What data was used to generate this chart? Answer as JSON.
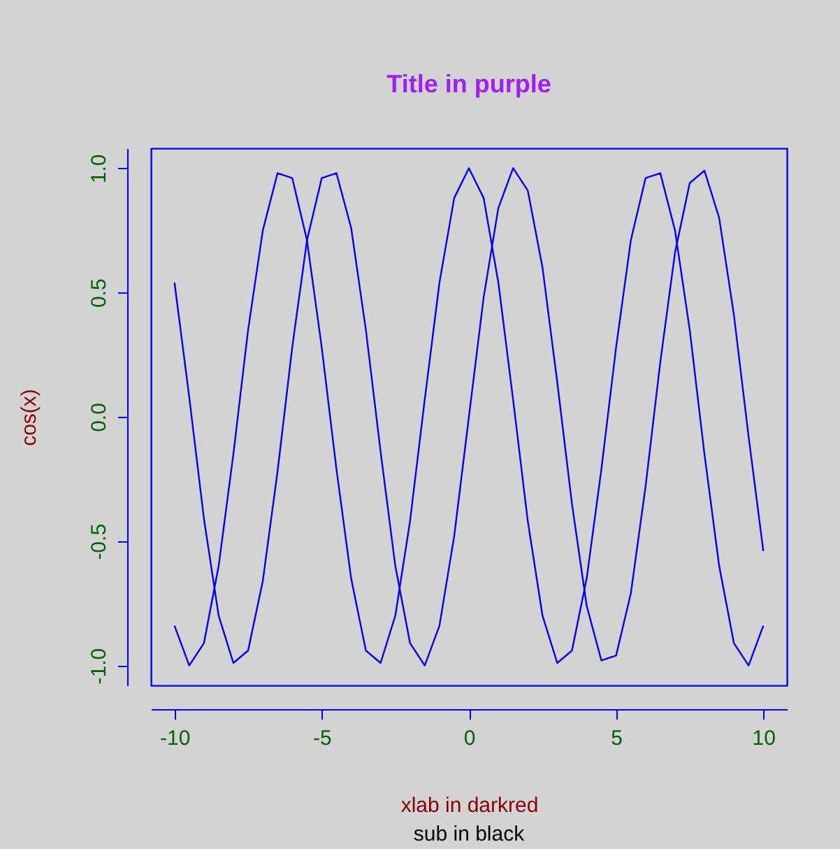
{
  "chart_data": {
    "type": "line",
    "title": "Title in purple",
    "subtitle": "sub in black",
    "xlabel": "xlab in darkred",
    "ylabel": "cos(x)",
    "x": [
      -10,
      -9.5,
      -9,
      -8.5,
      -8,
      -7.5,
      -7,
      -6.5,
      -6,
      -5.5,
      -5,
      -4.5,
      -4,
      -3.5,
      -3,
      -2.5,
      -2,
      -1.5,
      -1,
      -0.5,
      0,
      0.5,
      1,
      1.5,
      2,
      2.5,
      3,
      3.5,
      4,
      4.5,
      5,
      5.5,
      6,
      6.5,
      7,
      7.5,
      8,
      8.5,
      9,
      9.5,
      10
    ],
    "series": [
      {
        "color": "#0000ff",
        "values": [
          -0.84,
          -1.0,
          -0.91,
          -0.6,
          -0.15,
          0.35,
          0.75,
          0.98,
          0.96,
          0.71,
          0.28,
          -0.21,
          -0.65,
          -0.94,
          -0.99,
          -0.8,
          -0.42,
          0.07,
          0.54,
          0.88,
          1.0,
          0.88,
          0.54,
          0.07,
          -0.42,
          -0.8,
          -0.99,
          -0.94,
          -0.65,
          -0.21,
          0.28,
          0.71,
          0.96,
          0.98,
          0.75,
          0.35,
          -0.15,
          -0.6,
          -0.91,
          -1.0,
          -0.84
        ]
      },
      {
        "color": "#0000ff",
        "values": [
          0.54,
          0.08,
          -0.41,
          -0.8,
          -0.99,
          -0.94,
          -0.66,
          -0.22,
          0.28,
          0.71,
          0.96,
          0.98,
          0.76,
          0.35,
          -0.14,
          -0.6,
          -0.91,
          -1.0,
          -0.84,
          -0.48,
          0.0,
          0.48,
          0.84,
          1.0,
          0.91,
          0.6,
          0.14,
          -0.35,
          -0.76,
          -0.98,
          -0.96,
          -0.71,
          -0.28,
          0.22,
          0.66,
          0.94,
          0.99,
          0.8,
          0.41,
          -0.08,
          -0.54
        ]
      }
    ],
    "xlim": [
      -10.8,
      10.8
    ],
    "ylim": [
      -1.08,
      1.08
    ],
    "xticks": [
      -10,
      -5,
      0,
      5,
      10
    ],
    "yticks": [
      {
        "value": -1,
        "label": "-1.0"
      },
      {
        "value": -0.5,
        "label": "-0.5"
      },
      {
        "value": 0,
        "label": "0.0"
      },
      {
        "value": 0.5,
        "label": "0.5"
      },
      {
        "value": 1,
        "label": "1.0"
      }
    ],
    "grid": false,
    "marker": "none",
    "line_style": "solid"
  }
}
